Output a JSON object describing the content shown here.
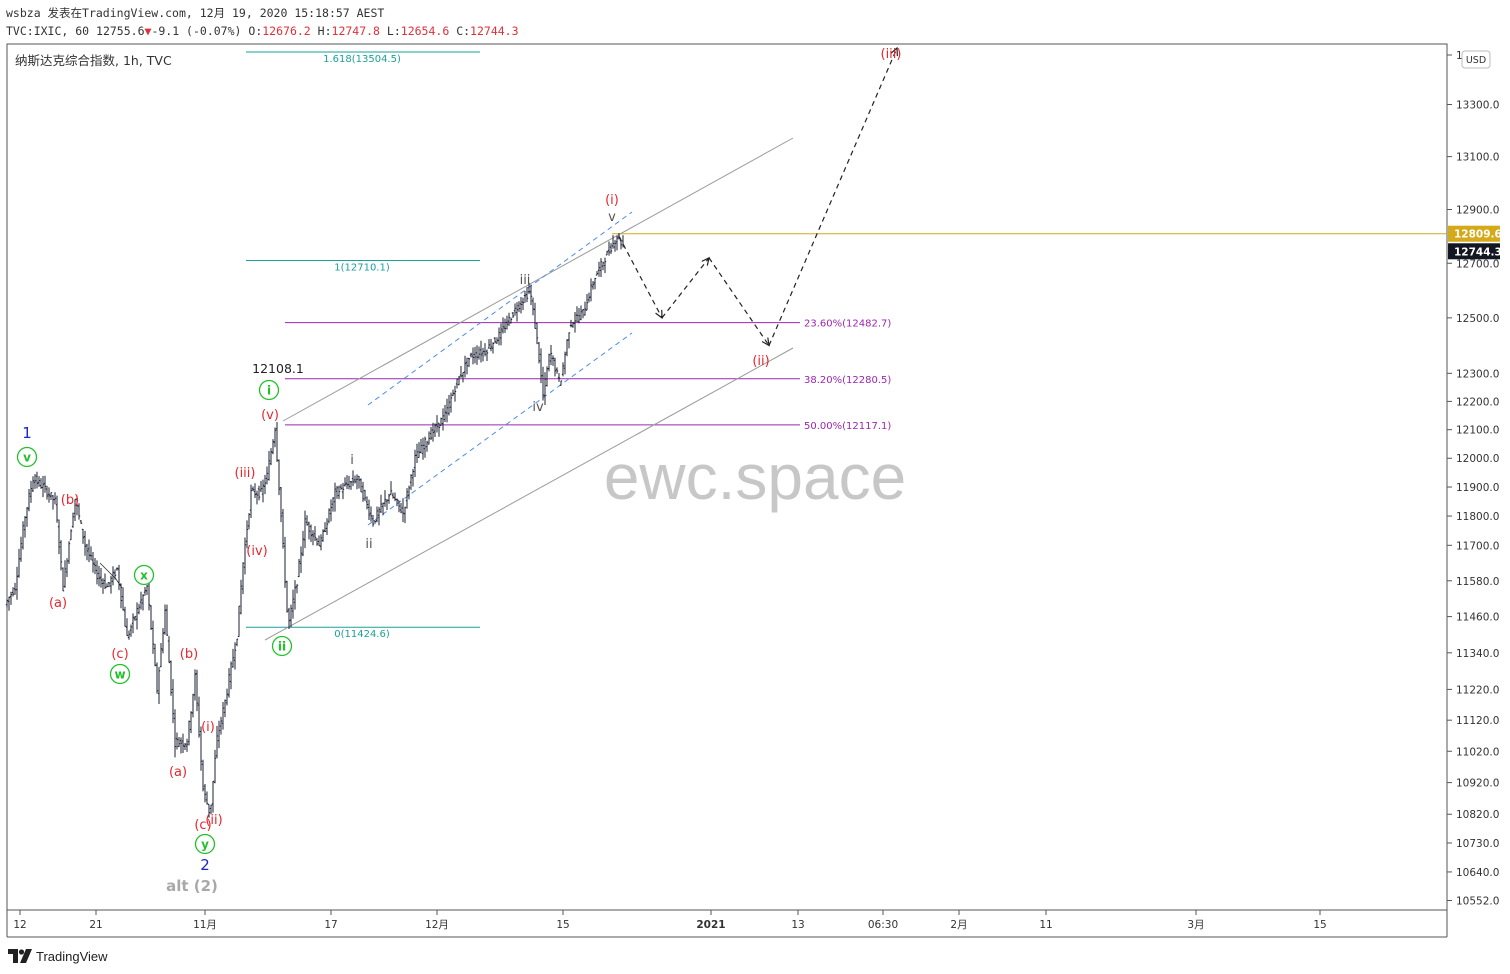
{
  "header": {
    "line1": "wsbza 发表在TradingView.com, 12月 19, 2020 15:18:57 AEST",
    "symbol": "TVC:IXIC, 60",
    "last": "12755.6",
    "change": "-9.1 (-0.07%)",
    "ohlc": {
      "o_label": "O:",
      "o": "12676.2",
      "h_label": "H:",
      "h": "12747.8",
      "l_label": "L:",
      "l": "12654.6",
      "c_label": "C:",
      "c": "12744.3"
    },
    "chart_title": "纳斯达克综合指数, 1h, TVC"
  },
  "footer": {
    "brand": "TradingView"
  },
  "watermark": "ewc.space",
  "currency_button": "USD",
  "colors": {
    "candle": "#1c2033",
    "fib_teal": "#1aa19a",
    "fib_purple": "#9c27b0",
    "price_line": "#d4aa1b",
    "wave_red": "#e8262e",
    "wave_green": "#22c12b",
    "wave_blue": "#1e24c9",
    "wave_gray": "#555555",
    "channel_blue": "#4e8ce8",
    "watermark": "#c7c7c7"
  },
  "chart_data": {
    "type": "candlestick",
    "title": "纳斯达克综合指数, 1h, TVC",
    "y_axis": {
      "scale": "log",
      "ticks": [
        "10552.0",
        "10640.0",
        "10730.0",
        "10820.0",
        "10920.0",
        "11020.0",
        "11120.0",
        "11220.0",
        "11340.0",
        "11460.0",
        "11580.0",
        "11700.0",
        "11800.0",
        "11900.0",
        "12000.0",
        "12100.0",
        "12200.0",
        "12300.0",
        "12500.0",
        "12700.0",
        "12900.0",
        "13100.0",
        "13300.0",
        "1"
      ],
      "range": [
        10500,
        13600
      ],
      "markers": [
        {
          "label": "12809.6",
          "value": 12809.6,
          "style": "price-line"
        },
        {
          "label": "12744.3",
          "value": 12744.3,
          "style": "last-price"
        }
      ]
    },
    "x_axis": {
      "ticks": [
        "12",
        "21",
        "11月",
        "17",
        "12月",
        "15",
        "2021",
        "13",
        "06:30",
        "2月",
        "11",
        "3月",
        "15"
      ]
    },
    "series_path": [
      {
        "x": 0,
        "y": 11500
      },
      {
        "x": 10,
        "y": 11560
      },
      {
        "x": 20,
        "y": 11800
      },
      {
        "x": 28,
        "y": 11930
      },
      {
        "x": 38,
        "y": 11900
      },
      {
        "x": 50,
        "y": 11850
      },
      {
        "x": 58,
        "y": 11560
      },
      {
        "x": 70,
        "y": 11860
      },
      {
        "x": 80,
        "y": 11700
      },
      {
        "x": 92,
        "y": 11600
      },
      {
        "x": 102,
        "y": 11560
      },
      {
        "x": 112,
        "y": 11620
      },
      {
        "x": 122,
        "y": 11390
      },
      {
        "x": 132,
        "y": 11480
      },
      {
        "x": 142,
        "y": 11560
      },
      {
        "x": 152,
        "y": 11220
      },
      {
        "x": 160,
        "y": 11480
      },
      {
        "x": 170,
        "y": 11050
      },
      {
        "x": 182,
        "y": 11050
      },
      {
        "x": 190,
        "y": 11260
      },
      {
        "x": 198,
        "y": 10900
      },
      {
        "x": 205,
        "y": 10820
      },
      {
        "x": 212,
        "y": 11060
      },
      {
        "x": 220,
        "y": 11180
      },
      {
        "x": 232,
        "y": 11400
      },
      {
        "x": 238,
        "y": 11640
      },
      {
        "x": 246,
        "y": 11880
      },
      {
        "x": 256,
        "y": 11880
      },
      {
        "x": 262,
        "y": 11940
      },
      {
        "x": 270,
        "y": 12108.1
      },
      {
        "x": 276,
        "y": 11800
      },
      {
        "x": 283,
        "y": 11424.6
      },
      {
        "x": 292,
        "y": 11580
      },
      {
        "x": 300,
        "y": 11780
      },
      {
        "x": 315,
        "y": 11700
      },
      {
        "x": 330,
        "y": 11880
      },
      {
        "x": 352,
        "y": 11930
      },
      {
        "x": 368,
        "y": 11780
      },
      {
        "x": 385,
        "y": 11880
      },
      {
        "x": 398,
        "y": 11810
      },
      {
        "x": 410,
        "y": 12000
      },
      {
        "x": 425,
        "y": 12080
      },
      {
        "x": 440,
        "y": 12150
      },
      {
        "x": 452,
        "y": 12270
      },
      {
        "x": 465,
        "y": 12360
      },
      {
        "x": 480,
        "y": 12380
      },
      {
        "x": 495,
        "y": 12440
      },
      {
        "x": 510,
        "y": 12530
      },
      {
        "x": 525,
        "y": 12600
      },
      {
        "x": 532,
        "y": 12420
      },
      {
        "x": 538,
        "y": 12220
      },
      {
        "x": 545,
        "y": 12380
      },
      {
        "x": 555,
        "y": 12260
      },
      {
        "x": 565,
        "y": 12480
      },
      {
        "x": 578,
        "y": 12520
      },
      {
        "x": 590,
        "y": 12650
      },
      {
        "x": 600,
        "y": 12720
      },
      {
        "x": 612,
        "y": 12800
      },
      {
        "x": 622,
        "y": 12744.3
      }
    ],
    "fib_levels": [
      {
        "label": "1.618(13504.5)",
        "value": 13504.5,
        "group": "extension"
      },
      {
        "label": "1(12710.1)",
        "value": 12710.1,
        "group": "extension"
      },
      {
        "label": "0(11424.6)",
        "value": 11424.6,
        "group": "extension"
      },
      {
        "label": "23.60%(12482.7)",
        "value": 12482.7,
        "group": "retracement"
      },
      {
        "label": "38.20%(12280.5)",
        "value": 12280.5,
        "group": "retracement"
      },
      {
        "label": "50.00%(12117.1)",
        "value": 12117.1,
        "group": "retracement"
      }
    ],
    "projection_path": [
      {
        "x": 612,
        "y": 12800
      },
      {
        "x": 655,
        "y": 12500
      },
      {
        "x": 702,
        "y": 12720
      },
      {
        "x": 762,
        "y": 12400
      },
      {
        "x": 890,
        "y": 13520
      }
    ],
    "price_annotation": {
      "text": "12108.1",
      "value": 12108.1
    },
    "wave_labels": [
      {
        "text": "1",
        "color": "blue",
        "style": "plain"
      },
      {
        "text": "v",
        "color": "green",
        "style": "circled"
      },
      {
        "text": "(b)",
        "color": "red",
        "style": "plain"
      },
      {
        "text": "(a)",
        "color": "red",
        "style": "plain"
      },
      {
        "text": "x",
        "color": "green",
        "style": "circled"
      },
      {
        "text": "(c)",
        "color": "red",
        "style": "plain"
      },
      {
        "text": "w",
        "color": "green",
        "style": "circled"
      },
      {
        "text": "(b)",
        "color": "red",
        "style": "plain"
      },
      {
        "text": "(i)",
        "color": "red",
        "style": "plain"
      },
      {
        "text": "(a)",
        "color": "red",
        "style": "plain"
      },
      {
        "text": "(c)",
        "color": "red",
        "style": "plain"
      },
      {
        "text": "(ii)",
        "color": "red",
        "style": "plain"
      },
      {
        "text": "y",
        "color": "green",
        "style": "circled"
      },
      {
        "text": "2",
        "color": "blue",
        "style": "plain"
      },
      {
        "text": "alt (2)",
        "color": "gray",
        "style": "plain"
      },
      {
        "text": "(iii)",
        "color": "red",
        "style": "plain"
      },
      {
        "text": "(iv)",
        "color": "red",
        "style": "plain"
      },
      {
        "text": "(v)",
        "color": "red",
        "style": "plain"
      },
      {
        "text": "i",
        "color": "green",
        "style": "circled"
      },
      {
        "text": "ii",
        "color": "green",
        "style": "circled"
      },
      {
        "text": "i",
        "color": "gray",
        "style": "plain"
      },
      {
        "text": "ii",
        "color": "gray",
        "style": "plain"
      },
      {
        "text": "iii",
        "color": "gray",
        "style": "plain"
      },
      {
        "text": "iv",
        "color": "gray",
        "style": "plain"
      },
      {
        "text": "v",
        "color": "gray",
        "style": "plain"
      },
      {
        "text": "(i)",
        "color": "red",
        "style": "plain"
      },
      {
        "text": "(ii)",
        "color": "red",
        "style": "plain"
      },
      {
        "text": "(iii)",
        "color": "red",
        "style": "plain"
      }
    ]
  }
}
